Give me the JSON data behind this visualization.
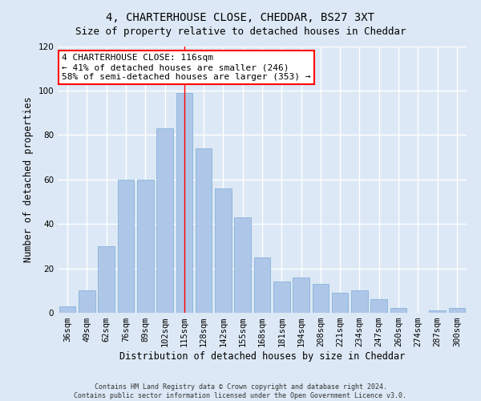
{
  "title": "4, CHARTERHOUSE CLOSE, CHEDDAR, BS27 3XT",
  "subtitle": "Size of property relative to detached houses in Cheddar",
  "xlabel": "Distribution of detached houses by size in Cheddar",
  "ylabel": "Number of detached properties",
  "footer_line1": "Contains HM Land Registry data © Crown copyright and database right 2024.",
  "footer_line2": "Contains public sector information licensed under the Open Government Licence v3.0.",
  "categories": [
    "36sqm",
    "49sqm",
    "62sqm",
    "76sqm",
    "89sqm",
    "102sqm",
    "115sqm",
    "128sqm",
    "142sqm",
    "155sqm",
    "168sqm",
    "181sqm",
    "194sqm",
    "208sqm",
    "221sqm",
    "234sqm",
    "247sqm",
    "260sqm",
    "274sqm",
    "287sqm",
    "300sqm"
  ],
  "values": [
    3,
    10,
    30,
    60,
    60,
    83,
    99,
    74,
    56,
    43,
    25,
    14,
    16,
    13,
    9,
    10,
    6,
    2,
    0,
    1,
    2
  ],
  "bar_color": "#aec6e8",
  "bar_edge_color": "#7aadd4",
  "vline_index": 6,
  "vline_color": "red",
  "annotation_title": "4 CHARTERHOUSE CLOSE: 116sqm",
  "annotation_line2": "← 41% of detached houses are smaller (246)",
  "annotation_line3": "58% of semi-detached houses are larger (353) →",
  "annotation_box_color": "#ffffff",
  "annotation_box_edge": "red",
  "ylim": [
    0,
    120
  ],
  "yticks": [
    0,
    20,
    40,
    60,
    80,
    100,
    120
  ],
  "background_color": "#dce8f5",
  "grid_color": "#ffffff",
  "title_fontsize": 10,
  "subtitle_fontsize": 9,
  "axis_label_fontsize": 8.5,
  "tick_fontsize": 7.5,
  "annotation_fontsize": 8,
  "footer_fontsize": 6
}
